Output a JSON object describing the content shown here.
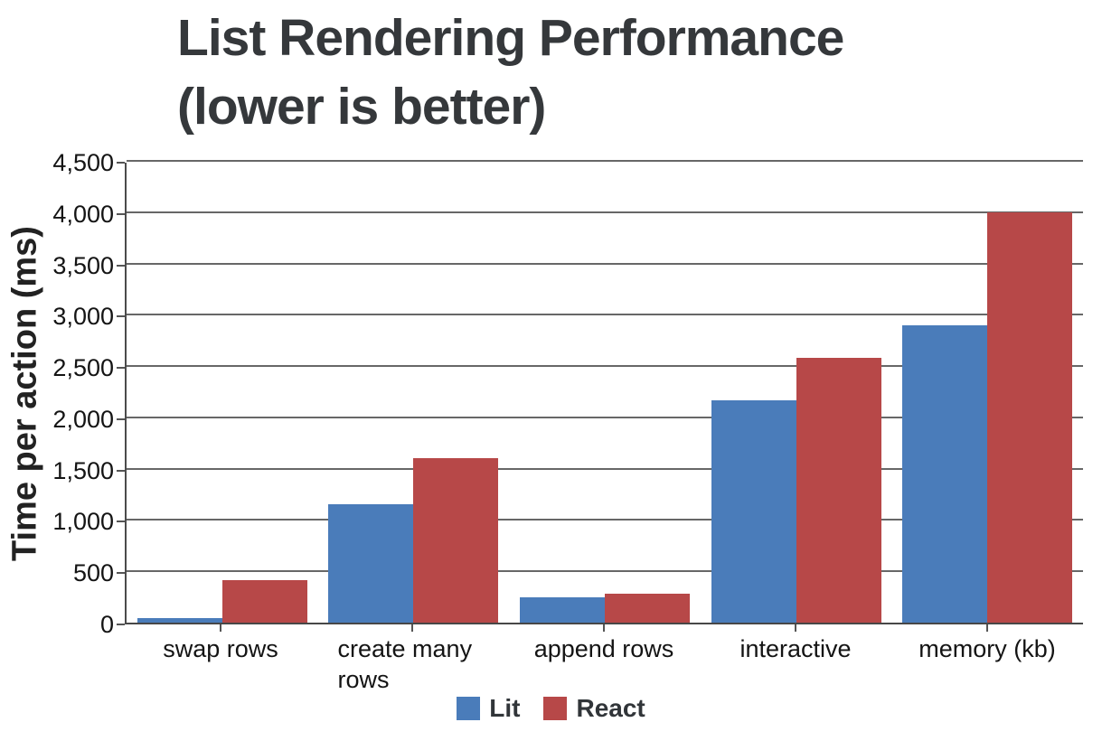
{
  "header": {
    "title_lines": [
      "List Rendering Performance",
      "(lower is better)"
    ]
  },
  "chart_data": {
    "type": "bar",
    "title": "List Rendering Performance (lower is better)",
    "categories": [
      "swap rows",
      "create many rows",
      "append rows",
      "interactive",
      "memory (kb)"
    ],
    "series": [
      {
        "name": "Lit",
        "color": "#4a7cba",
        "values": [
          45,
          1150,
          245,
          2170,
          2900
        ]
      },
      {
        "name": "React",
        "color": "#b74848",
        "values": [
          415,
          1600,
          280,
          2580,
          4000
        ]
      }
    ],
    "xlabel": "",
    "ylabel": "Time per action (ms)",
    "ylim": [
      0,
      4500
    ],
    "ytick_interval": 500,
    "ytick_labels": [
      "0",
      "500",
      "1,000",
      "1,500",
      "2,000",
      "2,500",
      "3,000",
      "3,500",
      "4,000",
      "4,500"
    ],
    "grid": true,
    "legend_position": "bottom",
    "bar_layout": "grouped"
  },
  "style": {
    "gridline_color": "#676767",
    "axis_color": "#4b4b4b",
    "title_color": "#35383b",
    "text_color": "#141414"
  }
}
